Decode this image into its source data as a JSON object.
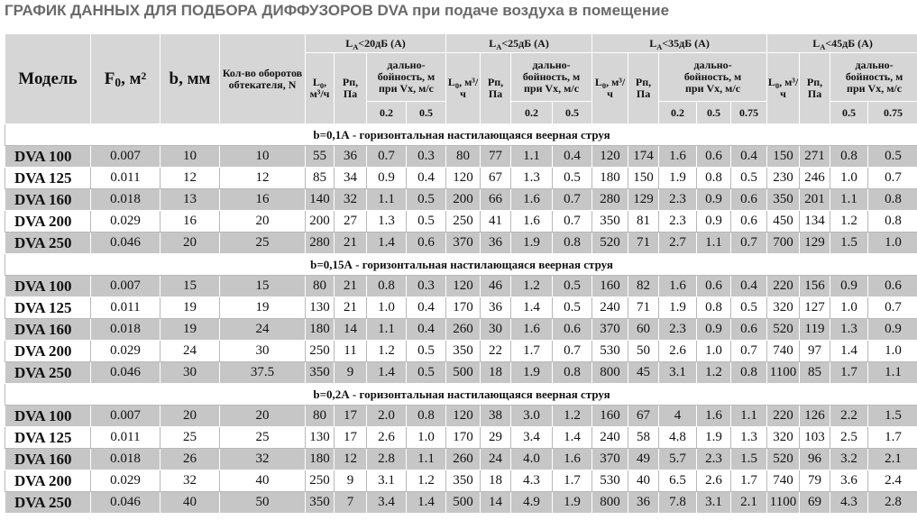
{
  "header": {
    "title": "ГРАФИК ДАННЫХ ДЛЯ ПОДБОРА ДИФФУЗОРОВ DVA при подаче воздуха в помещение"
  },
  "table": {
    "columns": {
      "model": "Модель",
      "area": {
        "symbol": "F",
        "sub": "0",
        "unit": ", м²"
      },
      "b": "b, мм",
      "turns": "Кол-во оборотов обтекателя, N",
      "groups": [
        {
          "symbol": "L",
          "sub": "A",
          "text": "<20дБ (A)",
          "flow": {
            "symbol": "L",
            "sub": "0",
            "unit": ", м³/ч"
          },
          "pressure": "Рп, Па",
          "throw": "дально-\nбойность, м\nпри Vx, м/с",
          "speeds": [
            "0.2",
            "0.5"
          ]
        },
        {
          "symbol": "L",
          "sub": "A",
          "text": "<25дБ (A)",
          "flow": {
            "symbol": "L",
            "sub": "0",
            "unit": ", м³/ч"
          },
          "pressure": "Рп, Па",
          "throw": "дально-\nбойность, м\nпри Vx, м/с",
          "speeds": [
            "0.2",
            "0.5"
          ]
        },
        {
          "symbol": "L",
          "sub": "A",
          "text": "<35дБ (A)",
          "flow": {
            "symbol": "L",
            "sub": "0",
            "unit": ", м³/ч"
          },
          "pressure": "Рп, Па",
          "throw": "дально-\nбойность, м\nпри Vx, м/с",
          "speeds": [
            "0.2",
            "0.5",
            "0.75"
          ]
        },
        {
          "symbol": "L",
          "sub": "A",
          "text": "<45дБ (A)",
          "flow": {
            "symbol": "L",
            "sub": "0",
            "unit": ", м³/ч"
          },
          "pressure": "Рп, Па",
          "throw": "дально-\nбойность, м\nпри Vx, м/с",
          "speeds": [
            "0.5",
            "0.75"
          ]
        }
      ]
    },
    "sections": [
      {
        "label": "b=0,1А  - горизонтальная настилающаяся веерная струя",
        "rows": [
          [
            "DVA 100",
            "0.007",
            "10",
            "10",
            "55",
            "36",
            "0.7",
            "0.3",
            "80",
            "77",
            "1.1",
            "0.4",
            "120",
            "174",
            "1.6",
            "0.6",
            "0.4",
            "150",
            "271",
            "0.8",
            "0.5"
          ],
          [
            "DVA 125",
            "0.011",
            "12",
            "12",
            "85",
            "34",
            "0.9",
            "0.4",
            "120",
            "67",
            "1.3",
            "0.5",
            "180",
            "150",
            "1.9",
            "0.8",
            "0.5",
            "230",
            "246",
            "1.0",
            "0.7"
          ],
          [
            "DVA 160",
            "0.018",
            "13",
            "16",
            "140",
            "32",
            "1.1",
            "0.5",
            "200",
            "66",
            "1.6",
            "0.7",
            "280",
            "129",
            "2.3",
            "0.9",
            "0.6",
            "350",
            "201",
            "1.1",
            "0.8"
          ],
          [
            "DVA 200",
            "0.029",
            "16",
            "20",
            "200",
            "27",
            "1.3",
            "0.5",
            "250",
            "41",
            "1.6",
            "0.7",
            "350",
            "81",
            "2.3",
            "0.9",
            "0.6",
            "450",
            "134",
            "1.2",
            "0.8"
          ],
          [
            "DVA 250",
            "0.046",
            "20",
            "25",
            "280",
            "21",
            "1.4",
            "0.6",
            "370",
            "36",
            "1.9",
            "0.8",
            "520",
            "71",
            "2.7",
            "1.1",
            "0.7",
            "700",
            "129",
            "1.5",
            "1.0"
          ]
        ]
      },
      {
        "label": "b=0,15А  - горизонтальная настилающаяся веерная струя",
        "rows": [
          [
            "DVA 100",
            "0.007",
            "15",
            "15",
            "80",
            "21",
            "0.8",
            "0.3",
            "120",
            "46",
            "1.2",
            "0.5",
            "160",
            "82",
            "1.6",
            "0.6",
            "0.4",
            "220",
            "156",
            "0.9",
            "0.6"
          ],
          [
            "DVA 125",
            "0.011",
            "19",
            "19",
            "130",
            "21",
            "1.0",
            "0.4",
            "170",
            "36",
            "1.4",
            "0.5",
            "240",
            "71",
            "1.9",
            "0.8",
            "0.5",
            "320",
            "127",
            "1.0",
            "0.7"
          ],
          [
            "DVA 160",
            "0.018",
            "19",
            "24",
            "180",
            "14",
            "1.1",
            "0.4",
            "260",
            "30",
            "1.6",
            "0.6",
            "370",
            "60",
            "2.3",
            "0.9",
            "0.6",
            "520",
            "119",
            "1.3",
            "0.9"
          ],
          [
            "DVA 200",
            "0.029",
            "24",
            "30",
            "250",
            "11",
            "1.2",
            "0.5",
            "350",
            "22",
            "1.7",
            "0.7",
            "530",
            "50",
            "2.6",
            "1.0",
            "0.7",
            "740",
            "97",
            "1.4",
            "1.0"
          ],
          [
            "DVA 250",
            "0.046",
            "30",
            "37.5",
            "350",
            "9",
            "1.4",
            "0.5",
            "500",
            "18",
            "1.9",
            "0.8",
            "800",
            "45",
            "3.1",
            "1.2",
            "0.8",
            "1100",
            "85",
            "1.7",
            "1.1"
          ]
        ]
      },
      {
        "label": "b=0,2А  - горизонтальная настилающаяся веерная струя",
        "rows": [
          [
            "DVA 100",
            "0.007",
            "20",
            "20",
            "80",
            "17",
            "2.0",
            "0.8",
            "120",
            "38",
            "3.0",
            "1.2",
            "160",
            "67",
            "4",
            "1.6",
            "1.1",
            "220",
            "126",
            "2.2",
            "1.5"
          ],
          [
            "DVA 125",
            "0.011",
            "25",
            "25",
            "130",
            "17",
            "2.6",
            "1.0",
            "170",
            "29",
            "3.4",
            "1.4",
            "240",
            "58",
            "4.8",
            "1.9",
            "1.3",
            "320",
            "103",
            "2.5",
            "1.7"
          ],
          [
            "DVA 160",
            "0.018",
            "26",
            "32",
            "180",
            "12",
            "2.8",
            "1.1",
            "260",
            "24",
            "4.0",
            "1.6",
            "370",
            "49",
            "5.7",
            "2.3",
            "1.5",
            "520",
            "96",
            "3.2",
            "2.1"
          ],
          [
            "DVA 200",
            "0.029",
            "32",
            "40",
            "250",
            "9",
            "3.1",
            "1.2",
            "350",
            "18",
            "4.3",
            "1.7",
            "530",
            "40",
            "6.5",
            "2.6",
            "1.7",
            "740",
            "79",
            "3.6",
            "2.4"
          ],
          [
            "DVA 250",
            "0.046",
            "40",
            "50",
            "350",
            "7",
            "3.4",
            "1.4",
            "500",
            "14",
            "4.9",
            "1.9",
            "800",
            "36",
            "7.8",
            "3.1",
            "2.1",
            "1100",
            "69",
            "4.3",
            "2.8"
          ]
        ]
      }
    ]
  }
}
